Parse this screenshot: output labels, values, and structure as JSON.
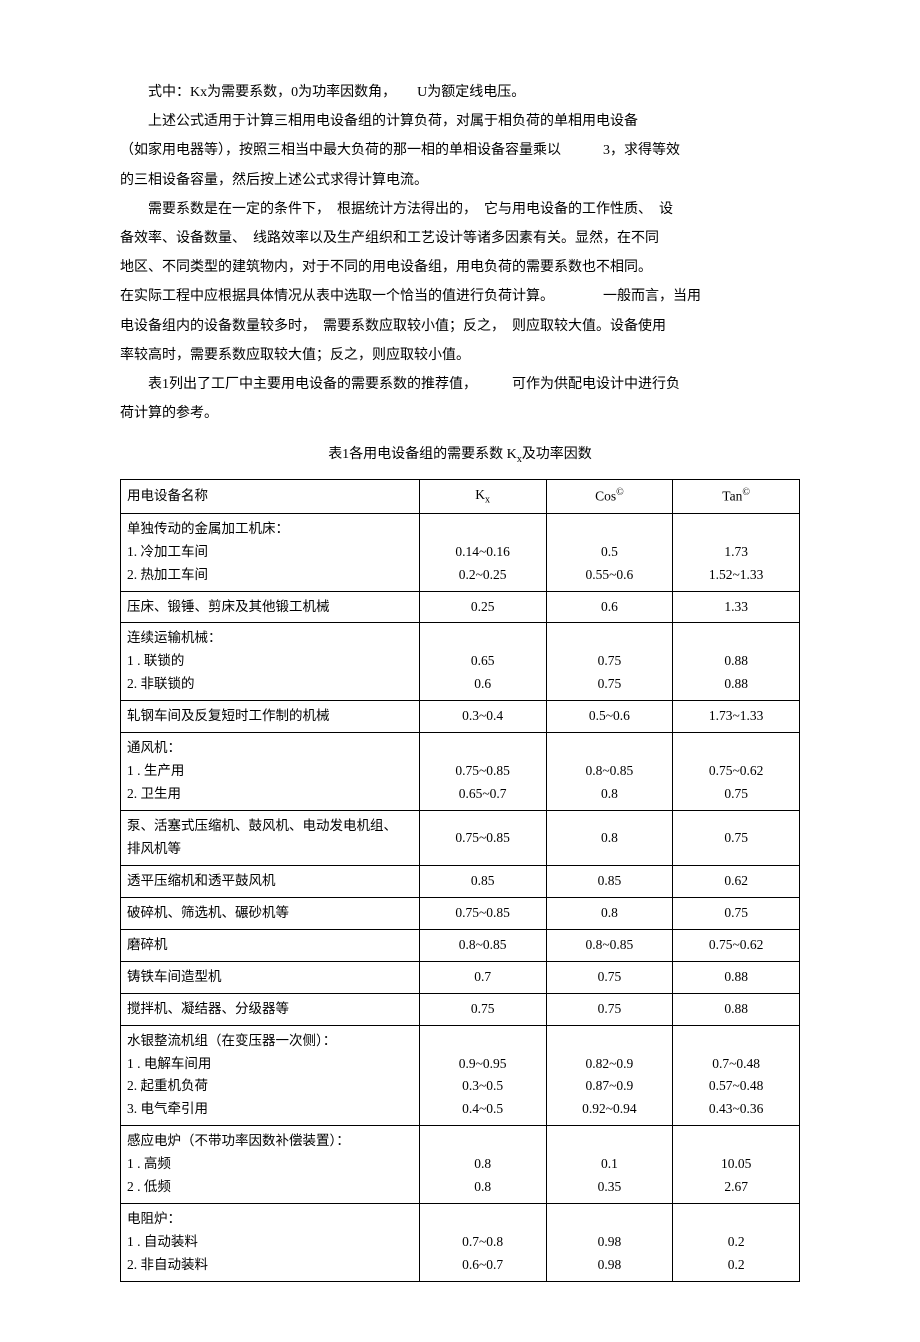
{
  "text": {
    "p1": "式中：Kx为需要系数，0为功率因数角，　　U为额定线电压。",
    "p2": "上述公式适用于计算三相用电设备组的计算负荷，对属于相负荷的单相用电设备",
    "p3": "（如家用电器等），按照三相当中最大负荷的那一相的单相设备容量乘以　　　3，求得等效",
    "p4": "的三相设备容量，然后按上述公式求得计算电流。",
    "p5": "需要系数是在一定的条件下，　根据统计方法得出的，　它与用电设备的工作性质、　设",
    "p6": "备效率、设备数量、　线路效率以及生产组织和工艺设计等诸多因素有关。显然，在不同",
    "p7": "地区、不同类型的建筑物内，对于不同的用电设备组，用电负荷的需要系数也不相同。",
    "p8": "在实际工程中应根据具体情况从表中选取一个恰当的值进行负荷计算。　　　　一般而言，当用",
    "p9": "电设备组内的设备数量较多时，　需要系数应取较小值；反之，　则应取较大值。设备使用",
    "p10": "率较高时，需要系数应取较大值；反之，则应取较小值。",
    "p11": "表1列出了工厂中主要用电设备的需要系数的推荐值，　　　可作为供配电设计中进行负",
    "p12": "荷计算的参考。",
    "caption_pre": "表1各用电设备组的需要系数 K",
    "caption_sub": "x",
    "caption_post": "及功率因数"
  },
  "table": {
    "headers": {
      "c1": "用电设备名称",
      "c2_pre": "K",
      "c2_sub": "x",
      "c3_pre": "Cos",
      "c3_sup": "©",
      "c4_pre": "Tan",
      "c4_sup": "©"
    },
    "rows": [
      {
        "name": "单独传动的金属加工机床：\n1. 冷加工车间\n2. 热加工车间",
        "kx": "\n0.14~0.16\n0.2~0.25",
        "cos": "\n0.5\n0.55~0.6",
        "tan": "\n1.73\n1.52~1.33"
      },
      {
        "name": "压床、锻锤、剪床及其他锻工机械",
        "kx": "0.25",
        "cos": "0.6",
        "tan": "1.33"
      },
      {
        "name": "连续运输机械：\n1 . 联锁的\n2. 非联锁的",
        "kx": "\n0.65\n0.6",
        "cos": "\n0.75\n0.75",
        "tan": "\n0.88\n0.88"
      },
      {
        "name": "轧钢车间及反复短时工作制的机械",
        "kx": "0.3~0.4",
        "cos": "0.5~0.6",
        "tan": "1.73~1.33"
      },
      {
        "name": "通风机：\n1 . 生产用\n2. 卫生用",
        "kx": "\n0.75~0.85\n0.65~0.7",
        "cos": "\n0.8~0.85\n0.8",
        "tan": "\n0.75~0.62\n0.75"
      },
      {
        "name": "泵、活塞式压缩机、鼓风机、电动发电机组、\n排风机等",
        "kx": "0.75~0.85",
        "cos": "0.8",
        "tan": "0.75"
      },
      {
        "name": "透平压缩机和透平鼓风机",
        "kx": "0.85",
        "cos": "0.85",
        "tan": "0.62"
      },
      {
        "name": "破碎机、筛选机、碾砂机等",
        "kx": "0.75~0.85",
        "cos": "0.8",
        "tan": "0.75"
      },
      {
        "name": "磨碎机",
        "kx": "0.8~0.85",
        "cos": "0.8~0.85",
        "tan": "0.75~0.62"
      },
      {
        "name": "铸铁车间造型机",
        "kx": "0.7",
        "cos": "0.75",
        "tan": "0.88"
      },
      {
        "name": "搅拌机、凝结器、分级器等",
        "kx": "0.75",
        "cos": "0.75",
        "tan": "0.88"
      },
      {
        "name": "水银整流机组（在变压器一次侧）：\n1 . 电解车间用\n2. 起重机负荷\n3. 电气牵引用",
        "kx": "\n0.9~0.95\n0.3~0.5\n0.4~0.5",
        "cos": "\n0.82~0.9\n0.87~0.9\n0.92~0.94",
        "tan": "\n0.7~0.48\n0.57~0.48\n0.43~0.36"
      },
      {
        "name": "感应电炉（不带功率因数补偿装置）：\n1 . 高频\n2 . 低频",
        "kx": "\n0.8\n0.8",
        "cos": "\n0.1\n0.35",
        "tan": "\n10.05\n2.67"
      },
      {
        "name": "电阻炉：\n1 . 自动装料\n2. 非自动装料",
        "kx": "\n0.7~0.8\n0.6~0.7",
        "cos": "\n0.98\n0.98",
        "tan": "\n0.2\n0.2"
      }
    ]
  },
  "colors": {
    "text": "#000000",
    "background": "#ffffff",
    "border": "#000000"
  }
}
